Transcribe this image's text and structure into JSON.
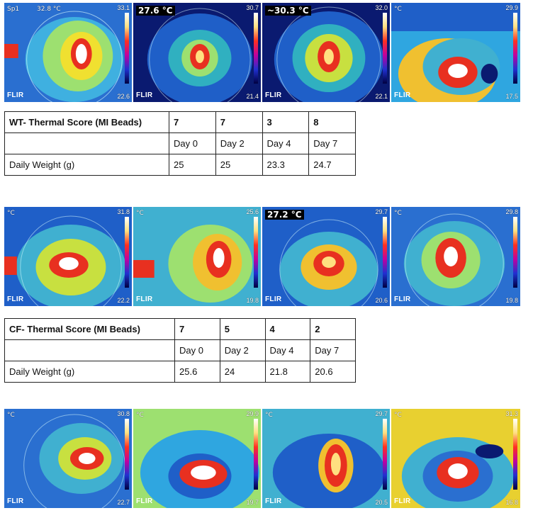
{
  "wt_table": {
    "header": "WT- Thermal Score (MI Beads)",
    "scores": [
      "7",
      "7",
      "3",
      "8"
    ],
    "days": [
      "Day 0",
      "Day 2",
      "Day 4",
      "Day 7"
    ],
    "weight_label": "Daily Weight (g)",
    "weights": [
      "25",
      "25",
      "23.3",
      "24.7"
    ]
  },
  "cf_table": {
    "header": "CF- Thermal Score (MI Beads)",
    "scores": [
      "7",
      "5",
      "4",
      "2"
    ],
    "days": [
      "Day 0",
      "Day 2",
      "Day 4",
      "Day 7"
    ],
    "weight_label": "Daily Weight (g)",
    "weights": [
      "25.6",
      "24",
      "21.8",
      "20.6"
    ]
  },
  "images_row1": [
    {
      "readout": "32.8 °C",
      "spot": "Sp1",
      "max": "33.1",
      "min": "22.6",
      "label": "Sp1",
      "brand": "FLIR"
    },
    {
      "readout": "27.6 °C",
      "max": "30.7",
      "min": "21.4",
      "brand": "FLIR"
    },
    {
      "readout": "~30.3 °C",
      "max": "32.0",
      "min": "22.1",
      "brand": "FLIR"
    },
    {
      "readout": "°C",
      "max": "29.9",
      "min": "17.5",
      "brand": "FLIR"
    }
  ],
  "images_row2": [
    {
      "readout": "°C",
      "max": "31.8",
      "min": "22.2",
      "brand": "FLIR"
    },
    {
      "readout": "°C",
      "max": "25.6",
      "min": "19.8",
      "brand": "FLIR"
    },
    {
      "readout": "27.2 °C",
      "max": "29.7",
      "min": "20.6",
      "brand": "FLIR"
    },
    {
      "readout": "°C",
      "max": "29.8",
      "min": "19.8",
      "brand": "FLIR"
    }
  ],
  "images_row3": [
    {
      "readout": "°C",
      "max": "30.8",
      "min": "22.7",
      "brand": "FLIR"
    },
    {
      "readout": "°C",
      "max": "29.9",
      "min": "19.7",
      "brand": "FLIR"
    },
    {
      "readout": "°C",
      "max": "29.7",
      "min": "20.5",
      "brand": "FLIR"
    },
    {
      "readout": "°C",
      "max": "31.3",
      "min": "16.8",
      "brand": "FLIR"
    }
  ],
  "colors": {
    "cold": "#1a2fb0",
    "cool": "#2fa6e0",
    "warm": "#e8e020",
    "hot": "#e83020",
    "hottest": "#ffffff"
  }
}
